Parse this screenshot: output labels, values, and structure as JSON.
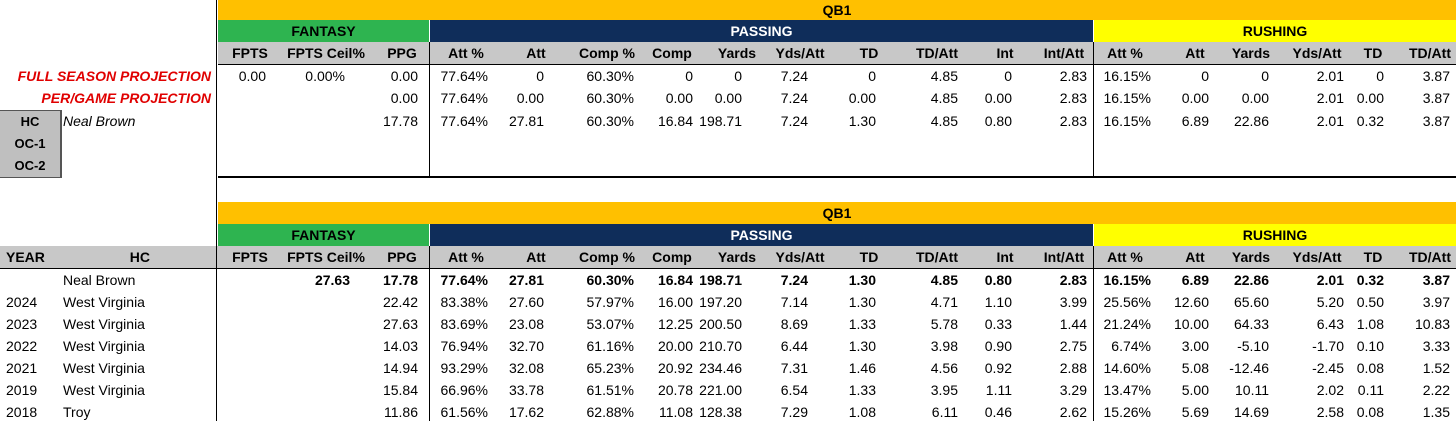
{
  "top": {
    "qb_label": "QB1",
    "groups": {
      "fantasy": "FANTASY",
      "passing": "PASSING",
      "rushing": "RUSHING"
    },
    "headers": [
      "FPTS",
      "FPTS Ceil%",
      "PPG",
      "Att %",
      "Att",
      "Comp %",
      "Comp",
      "Yards",
      "Yds/Att",
      "TD",
      "TD/Att",
      "Int",
      "Int/Att",
      "Att %",
      "Att",
      "Yards",
      "Yds/Att",
      "TD",
      "TD/Att"
    ],
    "rows": [
      {
        "label": "FULL SEASON PROJECTION",
        "values": [
          "0.00",
          "0.00%",
          "0.00",
          "77.64%",
          "0",
          "60.30%",
          "0",
          "0",
          "7.24",
          "0",
          "4.85",
          "0",
          "2.83",
          "16.15%",
          "0",
          "0",
          "2.01",
          "0",
          "3.87"
        ]
      },
      {
        "label": "PER/GAME PROJECTION",
        "values": [
          "",
          "",
          "0.00",
          "77.64%",
          "0.00",
          "60.30%",
          "0.00",
          "0.00",
          "7.24",
          "0.00",
          "4.85",
          "0.00",
          "2.83",
          "16.15%",
          "0.00",
          "0.00",
          "2.01",
          "0.00",
          "3.87"
        ]
      },
      {
        "label": "Neal Brown",
        "values": [
          "",
          "",
          "17.78",
          "77.64%",
          "27.81",
          "60.30%",
          "16.84",
          "198.71",
          "7.24",
          "1.30",
          "4.85",
          "0.80",
          "2.83",
          "16.15%",
          "6.89",
          "22.86",
          "2.01",
          "0.32",
          "3.87"
        ]
      }
    ],
    "roles": [
      "HC",
      "OC-1",
      "OC-2"
    ]
  },
  "bottom": {
    "qb_label": "QB1",
    "groups": {
      "fantasy": "FANTASY",
      "passing": "PASSING",
      "rushing": "RUSHING"
    },
    "year_header": "YEAR",
    "hc_header": "HC",
    "headers": [
      "FPTS",
      "FPTS Ceil%",
      "PPG",
      "Att %",
      "Att",
      "Comp %",
      "Comp",
      "Yards",
      "Yds/Att",
      "TD",
      "TD/Att",
      "Int",
      "Int/Att",
      "Att %",
      "Att",
      "Yards",
      "Yds/Att",
      "TD",
      "TD/Att"
    ],
    "rows": [
      {
        "year": "",
        "hc": "Neal Brown",
        "bold": true,
        "values": [
          "",
          "27.63",
          "17.78",
          "77.64%",
          "27.81",
          "60.30%",
          "16.84",
          "198.71",
          "7.24",
          "1.30",
          "4.85",
          "0.80",
          "2.83",
          "16.15%",
          "6.89",
          "22.86",
          "2.01",
          "0.32",
          "3.87"
        ]
      },
      {
        "year": "2024",
        "hc": "West Virginia",
        "bold": false,
        "values": [
          "",
          "",
          "22.42",
          "83.38%",
          "27.60",
          "57.97%",
          "16.00",
          "197.20",
          "7.14",
          "1.30",
          "4.71",
          "1.10",
          "3.99",
          "25.56%",
          "12.60",
          "65.60",
          "5.20",
          "0.50",
          "3.97"
        ]
      },
      {
        "year": "2023",
        "hc": "West Virginia",
        "bold": false,
        "values": [
          "",
          "",
          "27.63",
          "83.69%",
          "23.08",
          "53.07%",
          "12.25",
          "200.50",
          "8.69",
          "1.33",
          "5.78",
          "0.33",
          "1.44",
          "21.24%",
          "10.00",
          "64.33",
          "6.43",
          "1.08",
          "10.83"
        ]
      },
      {
        "year": "2022",
        "hc": "West Virginia",
        "bold": false,
        "values": [
          "",
          "",
          "14.03",
          "76.94%",
          "32.70",
          "61.16%",
          "20.00",
          "210.70",
          "6.44",
          "1.30",
          "3.98",
          "0.90",
          "2.75",
          "6.74%",
          "3.00",
          "-5.10",
          "-1.70",
          "0.10",
          "3.33"
        ]
      },
      {
        "year": "2021",
        "hc": "West Virginia",
        "bold": false,
        "values": [
          "",
          "",
          "14.94",
          "93.29%",
          "32.08",
          "65.23%",
          "20.92",
          "234.46",
          "7.31",
          "1.46",
          "4.56",
          "0.92",
          "2.88",
          "14.60%",
          "5.08",
          "-12.46",
          "-2.45",
          "0.08",
          "1.52"
        ]
      },
      {
        "year": "2019",
        "hc": "West Virginia",
        "bold": false,
        "values": [
          "",
          "",
          "15.84",
          "66.96%",
          "33.78",
          "61.51%",
          "20.78",
          "221.00",
          "6.54",
          "1.33",
          "3.95",
          "1.11",
          "3.29",
          "13.47%",
          "5.00",
          "10.11",
          "2.02",
          "0.11",
          "2.22"
        ]
      },
      {
        "year": "2018",
        "hc": "Troy",
        "bold": false,
        "values": [
          "",
          "",
          "11.86",
          "61.56%",
          "17.62",
          "62.88%",
          "11.08",
          "128.38",
          "7.29",
          "1.08",
          "6.11",
          "0.46",
          "2.62",
          "15.26%",
          "5.69",
          "14.69",
          "2.58",
          "0.08",
          "1.35"
        ]
      }
    ]
  }
}
